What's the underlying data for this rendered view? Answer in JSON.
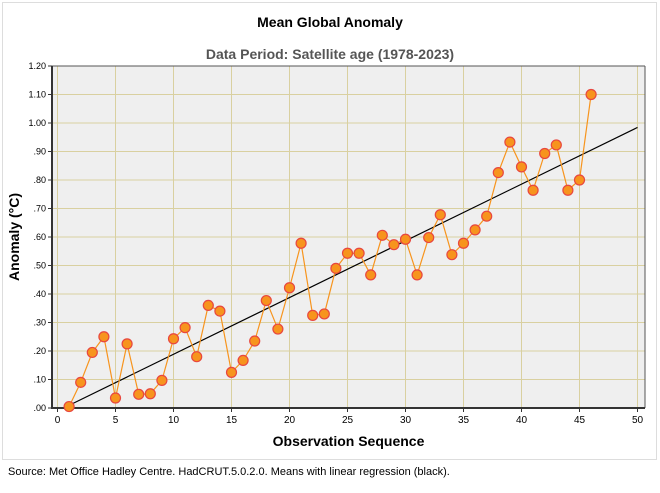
{
  "chart_data": {
    "type": "scatter",
    "title": "Mean Global Anomaly",
    "subtitle": "Data Period: Satellite age (1978-2023)",
    "xlabel": "Observation Sequence",
    "ylabel": "Anomaly (°C)",
    "xlim": [
      0,
      50
    ],
    "ylim": [
      0,
      1.2
    ],
    "xticks": [
      "0",
      "5",
      "10",
      "15",
      "20",
      "25",
      "30",
      "35",
      "40",
      "45",
      "50"
    ],
    "yticks": [
      ".00",
      ".10",
      ".20",
      ".30",
      ".40",
      ".50",
      ".60",
      ".70",
      ".80",
      ".90",
      "1.00",
      "1.10",
      "1.20"
    ],
    "grid": true,
    "series": [
      {
        "name": "Means",
        "color": "#f7941d",
        "marker_edge": "#e8473f",
        "x": [
          1,
          2,
          3,
          4,
          5,
          6,
          7,
          8,
          9,
          10,
          11,
          12,
          13,
          14,
          15,
          16,
          17,
          18,
          19,
          20,
          21,
          22,
          23,
          24,
          25,
          26,
          27,
          28,
          29,
          30,
          31,
          32,
          33,
          34,
          35,
          36,
          37,
          38,
          39,
          40,
          41,
          42,
          43,
          44,
          45,
          46
        ],
        "y": [
          0.005,
          0.09,
          0.195,
          0.25,
          0.035,
          0.225,
          0.048,
          0.05,
          0.097,
          0.243,
          0.282,
          0.18,
          0.36,
          0.34,
          0.125,
          0.167,
          0.235,
          0.377,
          0.277,
          0.422,
          0.578,
          0.325,
          0.33,
          0.49,
          0.543,
          0.543,
          0.467,
          0.606,
          0.573,
          0.592,
          0.467,
          0.598,
          0.678,
          0.538,
          0.578,
          0.625,
          0.673,
          0.826,
          0.933,
          0.846,
          0.764,
          0.893,
          0.923,
          0.764,
          0.8,
          1.1
        ]
      }
    ],
    "regression": {
      "name": "linear regression",
      "color": "#000000",
      "slope": 0.0199,
      "intercept": -0.0105
    }
  },
  "source": "Source: Met Office Hadley Centre. HadCRUT.5.0.2.0. Means with linear regression (black)."
}
